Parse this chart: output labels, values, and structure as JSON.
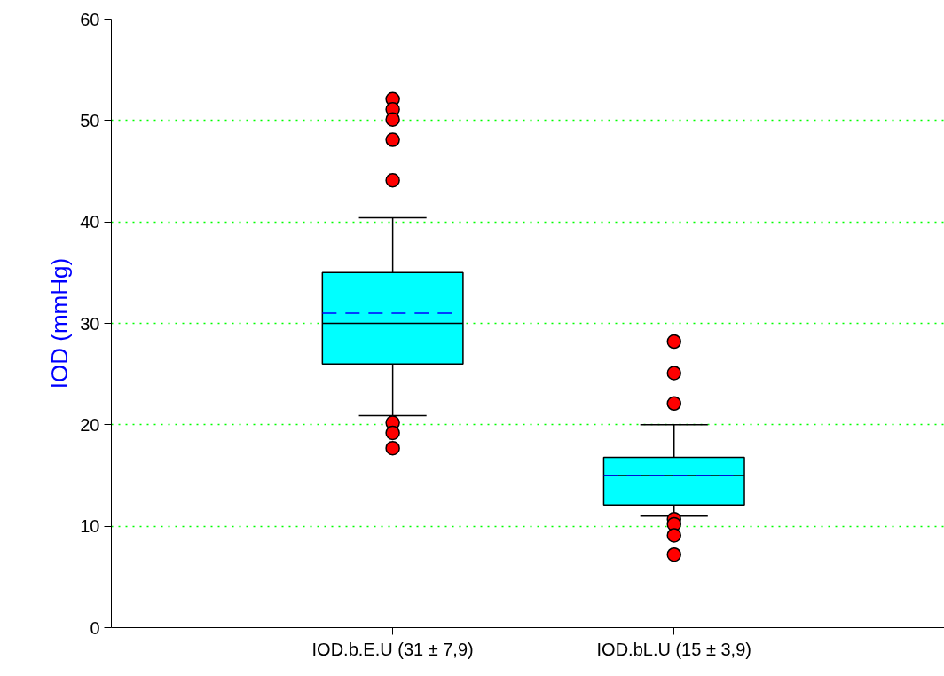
{
  "chart_data": {
    "type": "box",
    "ylabel": "IOD (mmHg)",
    "categories": [
      "IOD.b.E.U (31 ± 7,9)",
      "IOD.bL.U (15 ± 3,9)"
    ],
    "color": "#00ffff",
    "boxes": [
      {
        "low": 20.9,
        "q1": 26.0,
        "median": 30.0,
        "q3": 35.0,
        "high": 40.4,
        "mean": 31.0,
        "outliers": [
          52.1,
          51.1,
          50.1,
          48.1,
          44.1,
          20.2,
          19.2,
          17.7
        ]
      },
      {
        "low": 11.0,
        "q1": 12.1,
        "median": 15.0,
        "q3": 16.8,
        "high": 20.0,
        "mean": 15.0,
        "outliers": [
          28.2,
          25.1,
          22.1,
          10.7,
          10.2,
          9.1,
          7.2
        ]
      }
    ],
    "ylim": [
      0,
      60
    ],
    "yticks": [
      0,
      10,
      20,
      30,
      40,
      50,
      60
    ],
    "grid": "y",
    "marker": "circle"
  }
}
